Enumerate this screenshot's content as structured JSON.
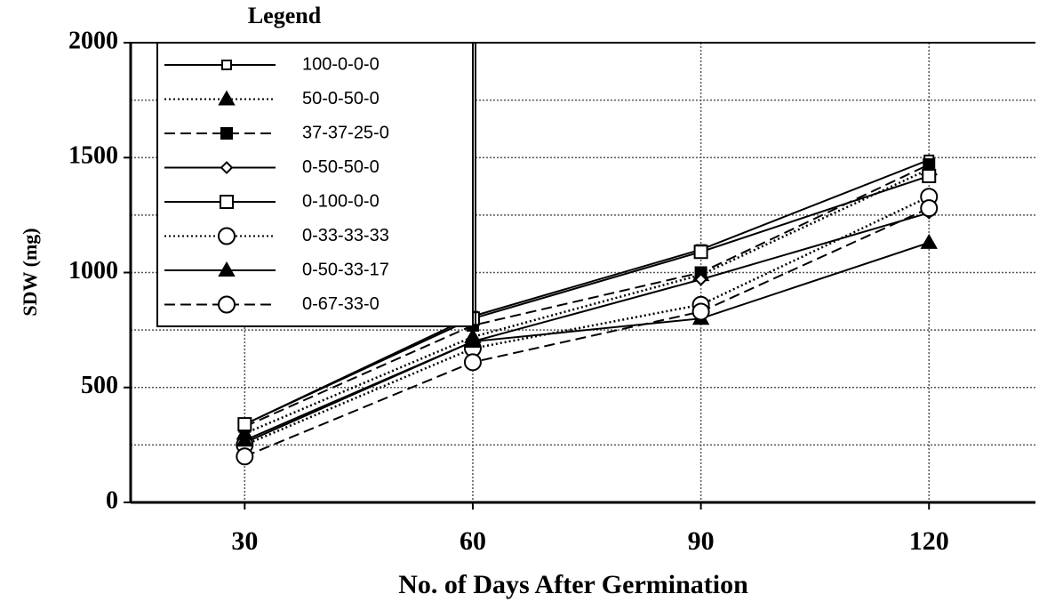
{
  "chart_data": {
    "type": "line",
    "legend_title": "Legend",
    "xlabel": "No. of Days After Germination",
    "ylabel": "SDW (mg)",
    "x": [
      30,
      60,
      90,
      120
    ],
    "xlim": [
      15,
      134
    ],
    "xticks": [
      30,
      60,
      90,
      120
    ],
    "ylim": [
      0,
      2000
    ],
    "yticks": [
      0,
      500,
      1000,
      1500,
      2000
    ],
    "minor_yticks": [
      250,
      750,
      1250,
      1750
    ],
    "grid": true,
    "legend": "upper left",
    "series": [
      {
        "name": "100-0-0-0",
        "color": "#000000",
        "dash": "solid",
        "marker": "square-small",
        "values": [
          340,
          810,
          1100,
          1490
        ]
      },
      {
        "name": "50-0-50-0",
        "color": "#000000",
        "dash": "dotted",
        "marker": "triangle",
        "values": [
          300,
          720,
          990,
          1450
        ]
      },
      {
        "name": "37-37-25-0",
        "color": "#000000",
        "dash": "dashed",
        "marker": "square-filled",
        "values": [
          330,
          770,
          1000,
          1470
        ]
      },
      {
        "name": "0-50-50-0",
        "color": "#000000",
        "dash": "solid",
        "marker": "diamond",
        "values": [
          260,
          700,
          970,
          1260
        ]
      },
      {
        "name": "0-100-0-0",
        "color": "#000000",
        "dash": "solid",
        "marker": "square",
        "values": [
          340,
          800,
          1090,
          1420
        ]
      },
      {
        "name": "0-33-33-33",
        "color": "#000000",
        "dash": "dotted",
        "marker": "circle",
        "values": [
          250,
          670,
          860,
          1330
        ]
      },
      {
        "name": "0-50-33-17",
        "color": "#000000",
        "dash": "solid",
        "marker": "triangle",
        "values": [
          270,
          700,
          800,
          1130
        ]
      },
      {
        "name": "0-67-33-0",
        "color": "#000000",
        "dash": "dashed",
        "marker": "circle",
        "values": [
          200,
          610,
          830,
          1280
        ]
      }
    ]
  }
}
